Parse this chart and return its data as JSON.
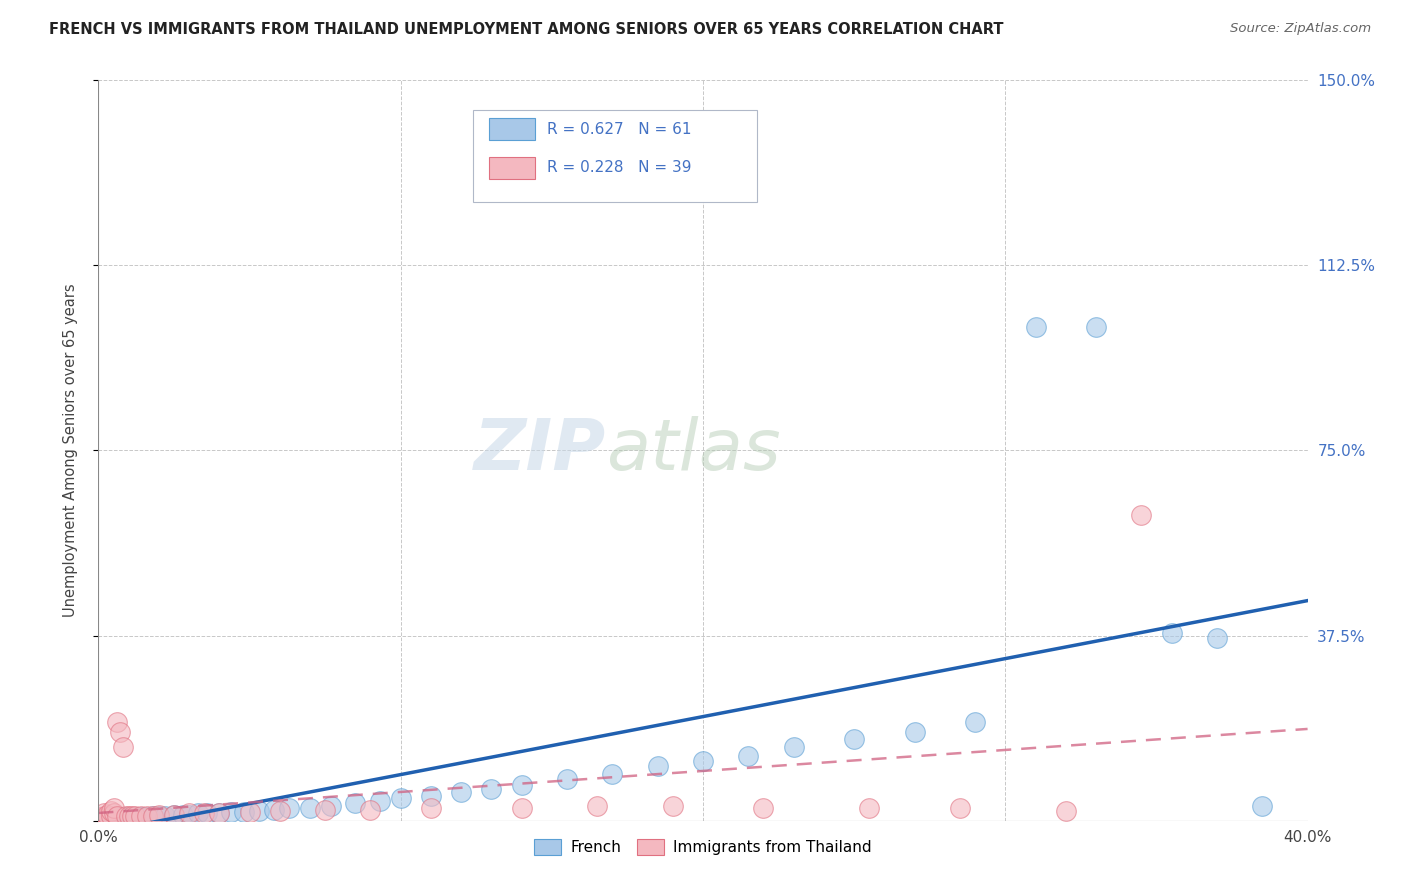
{
  "title": "FRENCH VS IMMIGRANTS FROM THAILAND UNEMPLOYMENT AMONG SENIORS OVER 65 YEARS CORRELATION CHART",
  "source": "Source: ZipAtlas.com",
  "ylabel": "Unemployment Among Seniors over 65 years",
  "xlim": [
    0.0,
    0.4
  ],
  "ylim": [
    0.0,
    1.5
  ],
  "x_ticks": [
    0.0,
    0.1,
    0.2,
    0.3,
    0.4
  ],
  "x_tick_labels": [
    "0.0%",
    "",
    "",
    "",
    "40.0%"
  ],
  "y_tick_labels_right": [
    "",
    "37.5%",
    "75.0%",
    "112.5%",
    "150.0%"
  ],
  "y_ticks_right": [
    0.0,
    0.375,
    0.75,
    1.125,
    1.5
  ],
  "french_R": 0.627,
  "french_N": 61,
  "thailand_R": 0.228,
  "thailand_N": 39,
  "french_color": "#a8c8e8",
  "french_edge_color": "#5a9fd4",
  "thailand_color": "#f4b8c0",
  "thailand_edge_color": "#e07080",
  "french_line_color": "#2060b0",
  "thailand_line_color": "#d06080",
  "background_color": "#ffffff",
  "french_x": [
    0.001,
    0.002,
    0.002,
    0.003,
    0.003,
    0.004,
    0.004,
    0.005,
    0.005,
    0.006,
    0.006,
    0.007,
    0.007,
    0.008,
    0.008,
    0.009,
    0.01,
    0.01,
    0.011,
    0.012,
    0.013,
    0.014,
    0.015,
    0.016,
    0.018,
    0.02,
    0.022,
    0.025,
    0.028,
    0.03,
    0.033,
    0.036,
    0.04,
    0.044,
    0.048,
    0.053,
    0.058,
    0.063,
    0.07,
    0.077,
    0.085,
    0.093,
    0.1,
    0.11,
    0.12,
    0.13,
    0.14,
    0.155,
    0.17,
    0.185,
    0.2,
    0.215,
    0.23,
    0.25,
    0.27,
    0.29,
    0.31,
    0.33,
    0.355,
    0.37,
    0.385
  ],
  "french_y": [
    0.005,
    0.006,
    0.005,
    0.007,
    0.005,
    0.006,
    0.007,
    0.005,
    0.006,
    0.006,
    0.005,
    0.007,
    0.005,
    0.006,
    0.007,
    0.005,
    0.006,
    0.007,
    0.006,
    0.007,
    0.008,
    0.007,
    0.008,
    0.008,
    0.009,
    0.01,
    0.01,
    0.012,
    0.012,
    0.012,
    0.015,
    0.015,
    0.015,
    0.018,
    0.018,
    0.02,
    0.022,
    0.025,
    0.025,
    0.03,
    0.035,
    0.04,
    0.045,
    0.05,
    0.058,
    0.065,
    0.072,
    0.085,
    0.095,
    0.11,
    0.12,
    0.13,
    0.15,
    0.165,
    0.18,
    0.2,
    1.0,
    1.0,
    0.38,
    0.37,
    0.03
  ],
  "thailand_x": [
    0.001,
    0.001,
    0.002,
    0.002,
    0.003,
    0.003,
    0.004,
    0.004,
    0.005,
    0.005,
    0.006,
    0.006,
    0.007,
    0.008,
    0.009,
    0.01,
    0.011,
    0.012,
    0.014,
    0.016,
    0.018,
    0.02,
    0.025,
    0.03,
    0.035,
    0.04,
    0.05,
    0.06,
    0.075,
    0.09,
    0.11,
    0.14,
    0.165,
    0.19,
    0.22,
    0.255,
    0.285,
    0.32,
    0.345
  ],
  "thailand_y": [
    0.005,
    0.008,
    0.01,
    0.015,
    0.008,
    0.012,
    0.01,
    0.02,
    0.015,
    0.025,
    0.01,
    0.2,
    0.18,
    0.15,
    0.01,
    0.01,
    0.01,
    0.01,
    0.01,
    0.01,
    0.01,
    0.012,
    0.012,
    0.015,
    0.015,
    0.015,
    0.018,
    0.02,
    0.022,
    0.022,
    0.025,
    0.025,
    0.03,
    0.03,
    0.025,
    0.025,
    0.025,
    0.02,
    0.62
  ]
}
